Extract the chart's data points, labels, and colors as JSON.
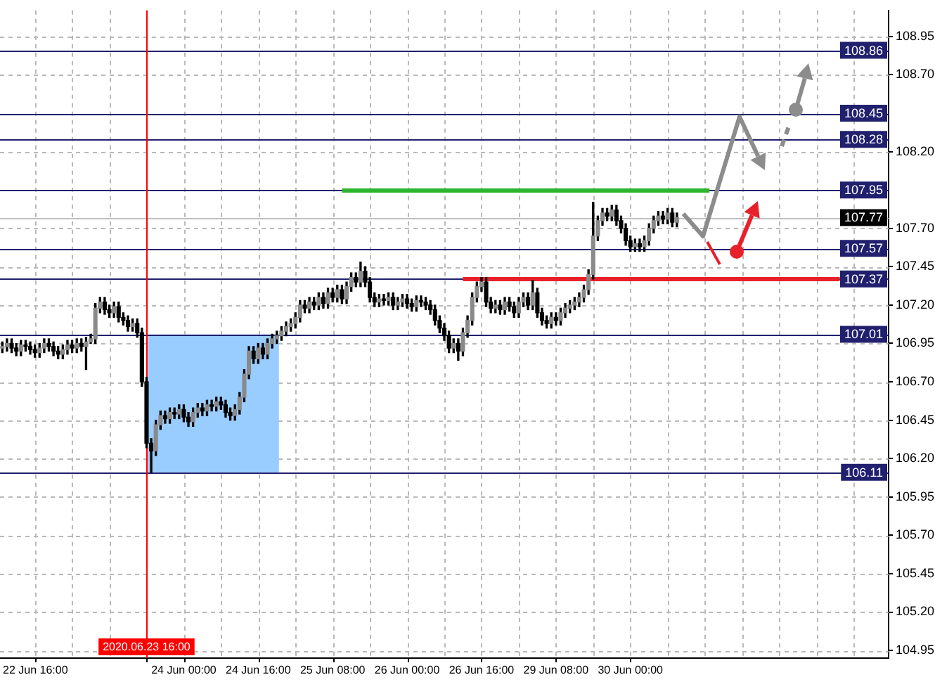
{
  "chart_data": {
    "type": "candlestick",
    "categories": [
      null,
      null,
      null,
      null,
      null,
      null,
      null,
      "22 Jun 16:00",
      null,
      null,
      null,
      null,
      null,
      null,
      null,
      null,
      null,
      null,
      null,
      null,
      null,
      null,
      null,
      null,
      null,
      null,
      null,
      null,
      null,
      null,
      null,
      "2020.06.23 16:00",
      null,
      null,
      null,
      null,
      null,
      null,
      null,
      "24 Jun 00:00",
      null,
      null,
      null,
      null,
      null,
      null,
      null,
      null,
      null,
      null,
      null,
      null,
      null,
      null,
      null,
      "24 Jun 16:00",
      null,
      null,
      null,
      null,
      null,
      null,
      null,
      null,
      null,
      null,
      null,
      null,
      null,
      null,
      null,
      "25 Jun 08:00",
      null,
      null,
      null,
      null,
      null,
      null,
      null,
      null,
      null,
      null,
      null,
      null,
      null,
      null,
      null,
      "26 Jun 00:00",
      null,
      null,
      null,
      null,
      null,
      null,
      null,
      null,
      null,
      null,
      null,
      null,
      null,
      null,
      null,
      "26 Jun 16:00",
      null,
      null,
      null,
      null,
      null,
      null,
      null,
      null,
      null,
      null,
      null,
      null,
      null,
      null,
      null,
      "29 Jun 08:00",
      null,
      null,
      null,
      null,
      null,
      null,
      null,
      null,
      null,
      null,
      null,
      null,
      null,
      null,
      null,
      "30 Jun 00:00",
      null,
      null,
      null,
      null,
      null,
      null,
      null,
      null,
      null,
      null,
      null,
      null,
      null,
      null,
      null,
      null,
      null,
      null,
      null,
      null,
      null,
      null,
      null,
      null,
      null,
      null,
      null,
      null,
      null,
      null,
      null,
      null,
      null,
      null,
      null,
      null,
      null,
      null,
      null,
      null,
      null,
      null,
      null,
      null,
      null,
      null,
      null,
      null,
      null,
      null,
      null,
      null,
      null,
      null,
      null
    ],
    "ohlc": [
      [
        106.92,
        106.96,
        106.89,
        106.93
      ],
      [
        106.93,
        106.98,
        106.9,
        106.95
      ],
      [
        106.95,
        106.98,
        106.89,
        106.92
      ],
      [
        106.92,
        106.95,
        106.87,
        106.9
      ],
      [
        106.9,
        106.97,
        106.87,
        106.94
      ],
      [
        106.94,
        106.97,
        106.9,
        106.93
      ],
      [
        106.93,
        106.96,
        106.88,
        106.91
      ],
      [
        106.91,
        106.94,
        106.86,
        106.89
      ],
      [
        106.89,
        106.95,
        106.86,
        106.92
      ],
      [
        106.92,
        106.98,
        106.89,
        106.95
      ],
      [
        106.95,
        106.98,
        106.9,
        106.93
      ],
      [
        106.93,
        106.96,
        106.87,
        106.9
      ],
      [
        106.9,
        106.93,
        106.85,
        106.88
      ],
      [
        106.88,
        106.94,
        106.85,
        106.91
      ],
      [
        106.91,
        106.97,
        106.88,
        106.94
      ],
      [
        106.94,
        106.97,
        106.89,
        106.92
      ],
      [
        106.92,
        106.98,
        106.89,
        106.95
      ],
      [
        106.95,
        106.98,
        106.9,
        106.93
      ],
      [
        106.93,
        106.99,
        106.78,
        106.96
      ],
      [
        106.96,
        107.01,
        106.95,
        106.98
      ],
      [
        106.98,
        107.21,
        106.95,
        107.18
      ],
      [
        107.18,
        107.25,
        107.15,
        107.22
      ],
      [
        107.22,
        107.25,
        107.14,
        107.17
      ],
      [
        107.17,
        107.2,
        107.12,
        107.15
      ],
      [
        107.15,
        107.22,
        107.12,
        107.19
      ],
      [
        107.19,
        107.22,
        107.09,
        107.12
      ],
      [
        107.12,
        107.15,
        107.07,
        107.1
      ],
      [
        107.1,
        107.13,
        107.03,
        107.06
      ],
      [
        107.06,
        107.11,
        107.03,
        107.08
      ],
      [
        107.08,
        107.11,
        106.99,
        107.02
      ],
      [
        107.02,
        107.05,
        106.67,
        106.7
      ],
      [
        106.7,
        106.73,
        106.27,
        106.3
      ],
      [
        106.3,
        106.33,
        106.11,
        106.25
      ],
      [
        106.25,
        106.45,
        106.22,
        106.42
      ],
      [
        106.42,
        106.51,
        106.39,
        106.48
      ],
      [
        106.48,
        106.51,
        106.43,
        106.46
      ],
      [
        106.46,
        106.53,
        106.43,
        106.5
      ],
      [
        106.5,
        106.53,
        106.46,
        106.49
      ],
      [
        106.49,
        106.55,
        106.46,
        106.52
      ],
      [
        106.52,
        106.55,
        106.44,
        106.47
      ],
      [
        106.47,
        106.5,
        106.41,
        106.44
      ],
      [
        106.44,
        106.53,
        106.41,
        106.5
      ],
      [
        106.5,
        106.56,
        106.47,
        106.53
      ],
      [
        106.53,
        106.56,
        106.48,
        106.51
      ],
      [
        106.51,
        106.58,
        106.48,
        106.55
      ],
      [
        106.55,
        106.58,
        106.51,
        106.54
      ],
      [
        106.54,
        106.6,
        106.51,
        106.57
      ],
      [
        106.57,
        106.6,
        106.52,
        106.55
      ],
      [
        106.55,
        106.58,
        106.47,
        106.5
      ],
      [
        106.5,
        106.53,
        106.45,
        106.48
      ],
      [
        106.48,
        106.55,
        106.45,
        106.52
      ],
      [
        106.52,
        106.63,
        106.49,
        106.6
      ],
      [
        106.6,
        106.78,
        106.57,
        106.75
      ],
      [
        106.75,
        106.93,
        106.72,
        106.9
      ],
      [
        106.9,
        106.93,
        106.82,
        106.85
      ],
      [
        106.85,
        106.95,
        106.82,
        106.92
      ],
      [
        106.92,
        106.95,
        106.85,
        106.88
      ],
      [
        106.88,
        106.98,
        106.85,
        106.95
      ],
      [
        106.95,
        107.01,
        106.92,
        106.98
      ],
      [
        106.98,
        107.03,
        106.95,
        107.0
      ],
      [
        107.0,
        107.06,
        106.97,
        107.03
      ],
      [
        107.03,
        107.09,
        107.0,
        107.06
      ],
      [
        107.06,
        107.11,
        107.03,
        107.08
      ],
      [
        107.08,
        107.15,
        107.05,
        107.12
      ],
      [
        107.12,
        107.23,
        107.09,
        107.2
      ],
      [
        107.2,
        107.23,
        107.15,
        107.18
      ],
      [
        107.18,
        107.25,
        107.15,
        107.22
      ],
      [
        107.22,
        107.25,
        107.17,
        107.2
      ],
      [
        107.2,
        107.28,
        107.17,
        107.25
      ],
      [
        107.25,
        107.28,
        107.18,
        107.21
      ],
      [
        107.21,
        107.31,
        107.18,
        107.28
      ],
      [
        107.28,
        107.31,
        107.22,
        107.25
      ],
      [
        107.25,
        107.33,
        107.22,
        107.3
      ],
      [
        107.3,
        107.33,
        107.21,
        107.24
      ],
      [
        107.24,
        107.35,
        107.21,
        107.32
      ],
      [
        107.32,
        107.41,
        107.29,
        107.38
      ],
      [
        107.38,
        107.41,
        107.32,
        107.35
      ],
      [
        107.35,
        107.48,
        107.32,
        107.42
      ],
      [
        107.42,
        107.45,
        107.32,
        107.35
      ],
      [
        107.35,
        107.38,
        107.22,
        107.25
      ],
      [
        107.25,
        107.28,
        107.19,
        107.22
      ],
      [
        107.22,
        107.27,
        107.19,
        107.24
      ],
      [
        107.24,
        107.27,
        107.2,
        107.23
      ],
      [
        107.23,
        107.28,
        107.2,
        107.25
      ],
      [
        107.25,
        107.28,
        107.17,
        107.2
      ],
      [
        107.2,
        107.25,
        107.17,
        107.22
      ],
      [
        107.22,
        107.27,
        107.19,
        107.24
      ],
      [
        107.24,
        107.27,
        107.18,
        107.21
      ],
      [
        107.21,
        107.24,
        107.16,
        107.19
      ],
      [
        107.19,
        107.26,
        107.16,
        107.23
      ],
      [
        107.23,
        107.26,
        107.19,
        107.22
      ],
      [
        107.22,
        107.25,
        107.17,
        107.2
      ],
      [
        107.2,
        107.23,
        107.14,
        107.17
      ],
      [
        107.17,
        107.2,
        107.07,
        107.1
      ],
      [
        107.1,
        107.13,
        107.02,
        107.05
      ],
      [
        107.05,
        107.08,
        106.97,
        107.0
      ],
      [
        107.0,
        107.03,
        106.89,
        106.92
      ],
      [
        106.92,
        106.98,
        106.89,
        106.95
      ],
      [
        106.95,
        106.98,
        106.84,
        106.9
      ],
      [
        106.9,
        107.05,
        106.87,
        107.02
      ],
      [
        107.02,
        107.13,
        106.99,
        107.1
      ],
      [
        107.1,
        107.28,
        107.07,
        107.25
      ],
      [
        107.25,
        107.35,
        107.22,
        107.32
      ],
      [
        107.32,
        107.38,
        107.29,
        107.35
      ],
      [
        107.35,
        107.38,
        107.19,
        107.22
      ],
      [
        107.22,
        107.25,
        107.15,
        107.18
      ],
      [
        107.18,
        107.23,
        107.15,
        107.2
      ],
      [
        107.2,
        107.23,
        107.14,
        107.17
      ],
      [
        107.17,
        107.25,
        107.14,
        107.22
      ],
      [
        107.22,
        107.25,
        107.16,
        107.19
      ],
      [
        107.19,
        107.22,
        107.12,
        107.15
      ],
      [
        107.15,
        107.25,
        107.12,
        107.22
      ],
      [
        107.22,
        107.28,
        107.19,
        107.25
      ],
      [
        107.25,
        107.28,
        107.17,
        107.2
      ],
      [
        107.2,
        107.36,
        107.17,
        107.28
      ],
      [
        107.28,
        107.31,
        107.12,
        107.15
      ],
      [
        107.15,
        107.18,
        107.07,
        107.1
      ],
      [
        107.1,
        107.13,
        107.05,
        107.08
      ],
      [
        107.08,
        107.15,
        107.05,
        107.12
      ],
      [
        107.12,
        107.15,
        107.07,
        107.1
      ],
      [
        107.1,
        107.18,
        107.07,
        107.15
      ],
      [
        107.15,
        107.21,
        107.12,
        107.18
      ],
      [
        107.18,
        107.23,
        107.15,
        107.2
      ],
      [
        107.2,
        107.25,
        107.17,
        107.22
      ],
      [
        107.22,
        107.28,
        107.19,
        107.25
      ],
      [
        107.25,
        107.33,
        107.22,
        107.3
      ],
      [
        107.3,
        107.43,
        107.27,
        107.4
      ],
      [
        107.4,
        107.87,
        107.37,
        107.65
      ],
      [
        107.65,
        107.78,
        107.62,
        107.75
      ],
      [
        107.75,
        107.83,
        107.72,
        107.8
      ],
      [
        107.8,
        107.83,
        107.75,
        107.78
      ],
      [
        107.78,
        107.85,
        107.75,
        107.82
      ],
      [
        107.82,
        107.85,
        107.72,
        107.75
      ],
      [
        107.75,
        107.78,
        107.67,
        107.7
      ],
      [
        107.7,
        107.73,
        107.59,
        107.62
      ],
      [
        107.62,
        107.65,
        107.55,
        107.58
      ],
      [
        107.58,
        107.63,
        107.55,
        107.6
      ],
      [
        107.6,
        107.63,
        107.55,
        107.58
      ],
      [
        107.58,
        107.65,
        107.55,
        107.62
      ],
      [
        107.62,
        107.73,
        107.59,
        107.7
      ],
      [
        107.7,
        107.78,
        107.67,
        107.75
      ],
      [
        107.75,
        107.81,
        107.72,
        107.78
      ],
      [
        107.78,
        107.81,
        107.73,
        107.76
      ],
      [
        107.76,
        107.83,
        107.73,
        107.8
      ],
      [
        107.8,
        107.83,
        107.71,
        107.74
      ],
      [
        107.74,
        107.8,
        107.71,
        107.77
      ],
      null,
      null,
      null,
      null,
      null,
      null,
      null,
      null,
      null,
      null,
      null,
      null,
      null,
      null,
      null,
      null,
      null,
      null,
      null,
      null,
      null,
      null,
      null,
      null,
      null,
      null,
      null,
      null,
      null,
      null,
      null,
      null,
      null,
      null,
      null,
      null,
      null,
      null,
      null,
      null,
      null,
      null,
      null,
      null,
      null
    ],
    "ylim": [
      104.9,
      109.12
    ],
    "yticks": [
      108.95,
      {
        "value": 108.7,
        "label": "108.70"
      },
      {
        "value": 108.2,
        "label": "108.20"
      },
      {
        "value": 107.7,
        "label": "107.70"
      },
      107.45,
      {
        "value": 107.2,
        "label": "107.20"
      },
      106.95,
      {
        "value": 106.7,
        "label": "106.70"
      },
      106.45,
      {
        "value": 106.2,
        "label": "106.20"
      },
      105.95,
      {
        "value": 105.7,
        "label": "105.70"
      },
      105.45,
      {
        "value": 105.2,
        "label": "105.20"
      },
      104.95
    ],
    "grid": true,
    "ref_lines": [
      {
        "axis": "y",
        "value": 108.86,
        "label": "108.86",
        "color": "#20206e"
      },
      {
        "axis": "y",
        "value": 108.45,
        "label": "108.45",
        "color": "#20206e"
      },
      {
        "axis": "y",
        "value": 108.28,
        "label": "108.28",
        "color": "#20206e"
      },
      {
        "axis": "y",
        "value": 107.95,
        "label": "107.95",
        "color": "#20206e"
      },
      {
        "axis": "y",
        "value": 107.77,
        "label": "107.77",
        "color": "#c0c0c0"
      },
      {
        "axis": "y",
        "value": 107.57,
        "label": "107.57",
        "color": "#20206e"
      },
      {
        "axis": "y",
        "value": 107.37,
        "label": "107.37",
        "color": "#20206e"
      },
      {
        "axis": "y",
        "value": 107.01,
        "label": "107.01",
        "color": "#20206e"
      },
      {
        "axis": "y",
        "value": 106.11,
        "label": "106.11",
        "color": "#20206e"
      },
      {
        "axis": "y",
        "value": 107.95,
        "color": "#2db52d"
      },
      {
        "axis": "y",
        "value": 107.37,
        "color": "#e8202a"
      },
      {
        "axis": "x",
        "value": "2020.06.23 16:00",
        "color": "#ff0000"
      }
    ],
    "bands": [
      {
        "axis": "y",
        "from": 106.11,
        "to": 107.01,
        "color": "#99ccff"
      }
    ]
  }
}
